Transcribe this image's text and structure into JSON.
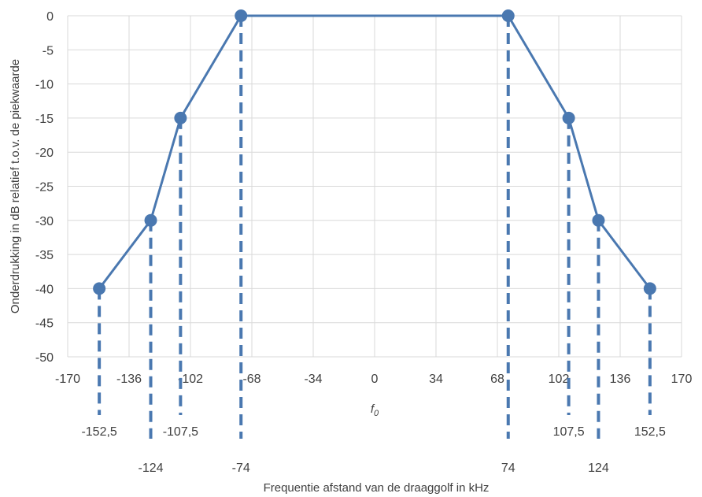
{
  "chart_data": {
    "type": "line",
    "title": "",
    "xlabel": "Frequentie afstand van de draaggolf in kHz",
    "ylabel": "Onderdrukking in dB relatief t.o.v. de piekwaarde",
    "xlim": [
      -170,
      170
    ],
    "ylim": [
      -50,
      0
    ],
    "grid": true,
    "x_ticks": [
      -170,
      -136,
      -102,
      -68,
      -34,
      0,
      34,
      68,
      102,
      136,
      170
    ],
    "x_tick_labels": [
      "-170",
      "-136",
      "-102",
      "-68",
      "-34",
      "0",
      "34",
      "68",
      "102",
      "136",
      "170"
    ],
    "y_ticks": [
      0,
      -5,
      -10,
      -15,
      -20,
      -25,
      -30,
      -35,
      -40,
      -45,
      -50
    ],
    "y_tick_labels": [
      "0",
      "-5",
      "-10",
      "-15",
      "-20",
      "-25",
      "-30",
      "-35",
      "-40",
      "-45",
      "-50"
    ],
    "series": [
      {
        "x": [
          -152.5,
          -124,
          -107.5,
          -74,
          74,
          107.5,
          124,
          152.5
        ],
        "y": [
          -40,
          -30,
          -15,
          0,
          0,
          -15,
          -30,
          -40
        ]
      }
    ],
    "center_label": "f0",
    "drop_labels_row1": [
      {
        "x": -152.5,
        "label": "-152,5"
      },
      {
        "x": -107.5,
        "label": "-107,5"
      },
      {
        "x": 107.5,
        "label": "107,5"
      },
      {
        "x": 152.5,
        "label": "152,5"
      }
    ],
    "drop_labels_row2": [
      {
        "x": -124,
        "label": "-124"
      },
      {
        "x": -74,
        "label": "-74"
      },
      {
        "x": 74,
        "label": "74"
      },
      {
        "x": 124,
        "label": "124"
      }
    ],
    "colors": {
      "series": "#4a78b0",
      "grid": "#d9d9d9",
      "text": "#404040"
    }
  }
}
